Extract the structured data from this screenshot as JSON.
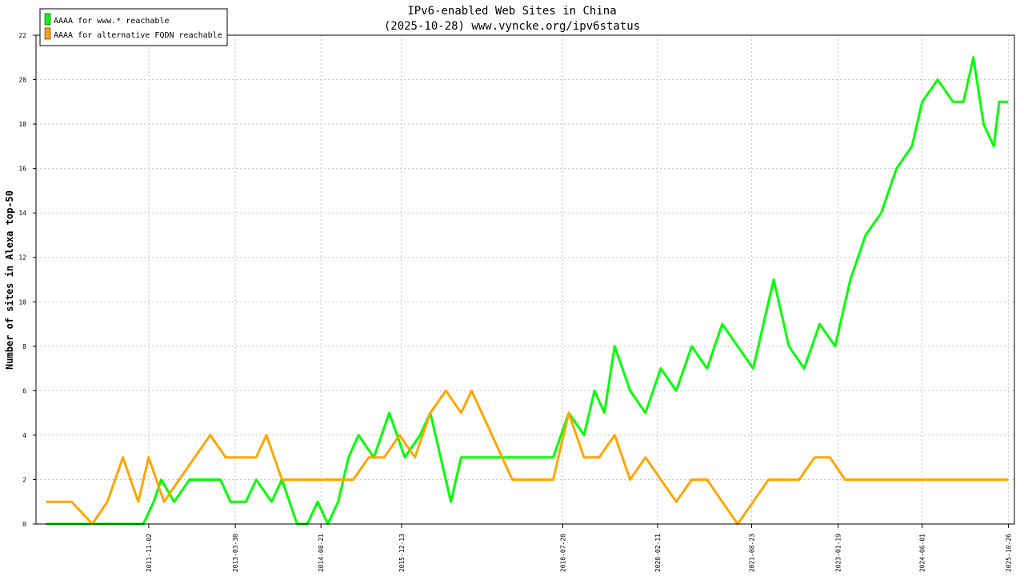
{
  "chart_data": {
    "type": "line",
    "title": "IPv6-enabled Web Sites in China",
    "subtitle": "(2025-10-28) www.vyncke.org/ipv6status",
    "xlabel": "",
    "ylabel": "Number of sites in Alexa top-50",
    "ylim": [
      0,
      22
    ],
    "yticks": [
      0,
      2,
      4,
      6,
      8,
      10,
      12,
      14,
      16,
      18,
      20,
      22
    ],
    "xlim": [
      "2010-01-01",
      "2025-12-01"
    ],
    "xtick_labels": [
      "2011-11-02",
      "2013-03-30",
      "2014-08-21",
      "2015-12-13",
      "2018-07-28",
      "2020-02-11",
      "2021-08-23",
      "2023-01-19",
      "2024-06-01",
      "2025-10-26"
    ],
    "grid": true,
    "legend": "top-left",
    "series": [
      {
        "name": "AAAA for www.* reachable",
        "color": "#00ff00",
        "points": [
          [
            "2010-03-01",
            0
          ],
          [
            "2011-04-01",
            0
          ],
          [
            "2011-07-01",
            0
          ],
          [
            "2011-10-01",
            0
          ],
          [
            "2011-12-01",
            1
          ],
          [
            "2012-01-15",
            2
          ],
          [
            "2012-04-01",
            1
          ],
          [
            "2012-07-01",
            2
          ],
          [
            "2012-10-01",
            2
          ],
          [
            "2013-01-01",
            2
          ],
          [
            "2013-03-01",
            1
          ],
          [
            "2013-06-01",
            1
          ],
          [
            "2013-08-01",
            2
          ],
          [
            "2013-11-01",
            1
          ],
          [
            "2014-01-01",
            2
          ],
          [
            "2014-04-01",
            0
          ],
          [
            "2014-06-01",
            0
          ],
          [
            "2014-08-01",
            1
          ],
          [
            "2014-10-01",
            0
          ],
          [
            "2014-12-01",
            1
          ],
          [
            "2015-02-01",
            3
          ],
          [
            "2015-04-01",
            4
          ],
          [
            "2015-07-01",
            3
          ],
          [
            "2015-10-01",
            5
          ],
          [
            "2016-01-01",
            3
          ],
          [
            "2016-04-01",
            4
          ],
          [
            "2016-06-01",
            5
          ],
          [
            "2016-08-01",
            3
          ],
          [
            "2016-10-01",
            1
          ],
          [
            "2016-12-01",
            3
          ],
          [
            "2017-02-01",
            3
          ],
          [
            "2017-06-01",
            3
          ],
          [
            "2017-10-01",
            3
          ],
          [
            "2018-02-01",
            3
          ],
          [
            "2018-06-01",
            3
          ],
          [
            "2018-09-01",
            5
          ],
          [
            "2018-12-01",
            4
          ],
          [
            "2019-02-01",
            6
          ],
          [
            "2019-04-01",
            5
          ],
          [
            "2019-06-01",
            8
          ],
          [
            "2019-09-01",
            6
          ],
          [
            "2019-12-01",
            5
          ],
          [
            "2020-03-01",
            7
          ],
          [
            "2020-06-01",
            6
          ],
          [
            "2020-09-01",
            8
          ],
          [
            "2020-12-01",
            7
          ],
          [
            "2021-03-01",
            9
          ],
          [
            "2021-06-01",
            8
          ],
          [
            "2021-09-01",
            7
          ],
          [
            "2021-11-01",
            9
          ],
          [
            "2022-01-01",
            11
          ],
          [
            "2022-04-01",
            8
          ],
          [
            "2022-07-01",
            7
          ],
          [
            "2022-10-01",
            9
          ],
          [
            "2023-01-01",
            8
          ],
          [
            "2023-04-01",
            11
          ],
          [
            "2023-07-01",
            13
          ],
          [
            "2023-10-01",
            14
          ],
          [
            "2024-01-01",
            16
          ],
          [
            "2024-04-01",
            17
          ],
          [
            "2024-06-01",
            19
          ],
          [
            "2024-09-01",
            20
          ],
          [
            "2024-12-01",
            19
          ],
          [
            "2025-02-01",
            19
          ],
          [
            "2025-04-01",
            21
          ],
          [
            "2025-06-01",
            18
          ],
          [
            "2025-08-01",
            17
          ],
          [
            "2025-09-01",
            19
          ],
          [
            "2025-10-26",
            19
          ]
        ]
      },
      {
        "name": "AAAA for alternative FQDN reachable",
        "color": "#ffa500",
        "points": [
          [
            "2010-03-01",
            1
          ],
          [
            "2010-08-01",
            1
          ],
          [
            "2010-12-01",
            0
          ],
          [
            "2011-03-01",
            1
          ],
          [
            "2011-06-01",
            3
          ],
          [
            "2011-09-01",
            1
          ],
          [
            "2011-11-01",
            3
          ],
          [
            "2012-02-01",
            1
          ],
          [
            "2012-05-01",
            2
          ],
          [
            "2012-08-01",
            3
          ],
          [
            "2012-11-01",
            4
          ],
          [
            "2013-02-01",
            3
          ],
          [
            "2013-05-01",
            3
          ],
          [
            "2013-08-01",
            3
          ],
          [
            "2013-10-01",
            4
          ],
          [
            "2014-01-01",
            2
          ],
          [
            "2014-04-01",
            2
          ],
          [
            "2014-08-01",
            2
          ],
          [
            "2014-12-01",
            2
          ],
          [
            "2015-03-01",
            2
          ],
          [
            "2015-06-01",
            3
          ],
          [
            "2015-09-01",
            3
          ],
          [
            "2015-12-01",
            4
          ],
          [
            "2016-03-01",
            3
          ],
          [
            "2016-06-01",
            5
          ],
          [
            "2016-09-01",
            6
          ],
          [
            "2016-12-01",
            5
          ],
          [
            "2017-02-01",
            6
          ],
          [
            "2017-10-01",
            2
          ],
          [
            "2018-03-01",
            2
          ],
          [
            "2018-06-01",
            2
          ],
          [
            "2018-09-01",
            5
          ],
          [
            "2018-12-01",
            3
          ],
          [
            "2019-03-01",
            3
          ],
          [
            "2019-06-01",
            4
          ],
          [
            "2019-09-01",
            2
          ],
          [
            "2019-12-01",
            3
          ],
          [
            "2020-03-01",
            2
          ],
          [
            "2020-06-01",
            1
          ],
          [
            "2020-09-01",
            2
          ],
          [
            "2020-12-01",
            2
          ],
          [
            "2021-03-01",
            1
          ],
          [
            "2021-06-01",
            0
          ],
          [
            "2021-09-01",
            1
          ],
          [
            "2021-12-01",
            2
          ],
          [
            "2022-03-01",
            2
          ],
          [
            "2022-06-01",
            2
          ],
          [
            "2022-09-01",
            3
          ],
          [
            "2022-12-01",
            3
          ],
          [
            "2023-03-01",
            2
          ],
          [
            "2023-08-01",
            2
          ],
          [
            "2024-02-01",
            2
          ],
          [
            "2024-08-01",
            2
          ],
          [
            "2025-02-01",
            2
          ],
          [
            "2025-08-01",
            2
          ],
          [
            "2025-10-26",
            2
          ]
        ]
      }
    ]
  }
}
